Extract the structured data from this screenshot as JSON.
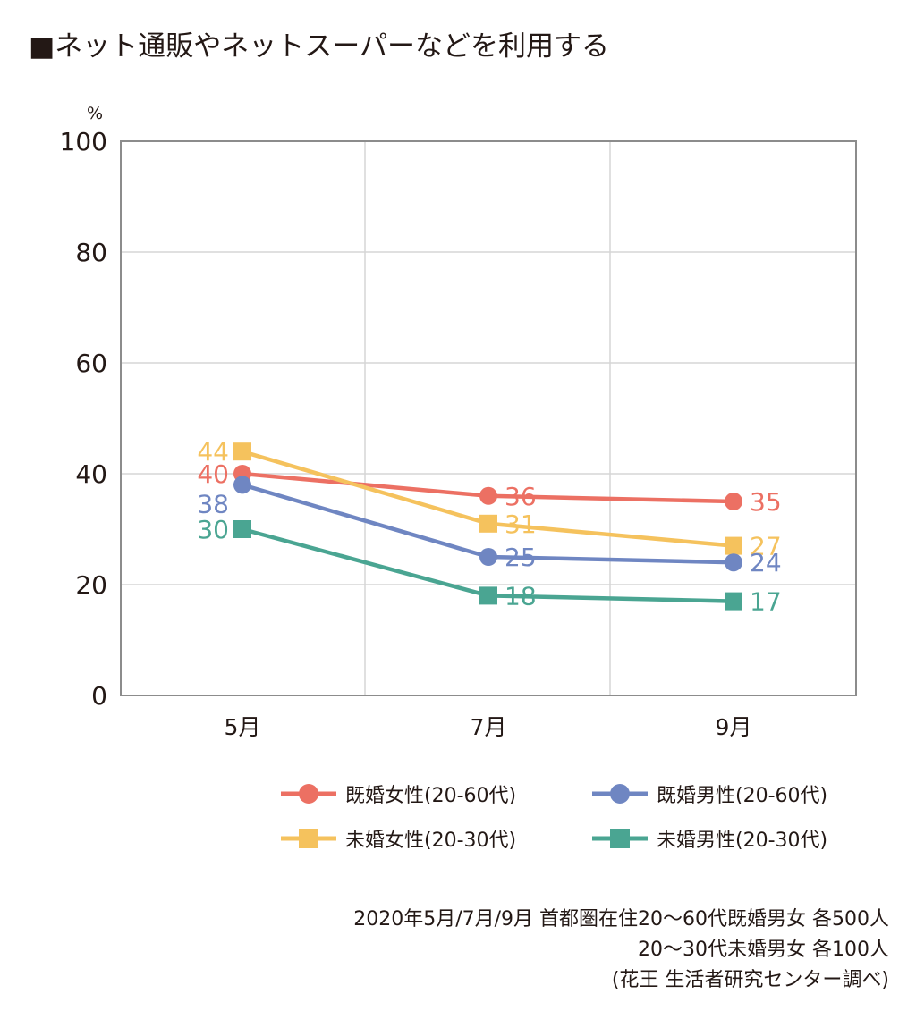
{
  "title": "■ネット通販やネットスーパーなどを利用する",
  "chart_data": {
    "type": "line",
    "title": "■ネット通販やネットスーパーなどを利用する",
    "unit_label": "%",
    "categories": [
      "5月",
      "7月",
      "9月"
    ],
    "ylim": [
      0,
      100
    ],
    "yticks": [
      0,
      20,
      40,
      60,
      80,
      100
    ],
    "grid": true,
    "legend_position": "bottom",
    "series": [
      {
        "name": "既婚女性(20-60代)",
        "values": [
          40,
          36,
          35
        ],
        "color": "#ec7063",
        "marker": "circle"
      },
      {
        "name": "未婚女性(20-30代)",
        "values": [
          44,
          31,
          27
        ],
        "color": "#f5c25d",
        "marker": "square"
      },
      {
        "name": "既婚男性(20-60代)",
        "values": [
          38,
          25,
          24
        ],
        "color": "#6f86c2",
        "marker": "circle"
      },
      {
        "name": "未婚男性(20-30代)",
        "values": [
          30,
          18,
          17
        ],
        "color": "#4aa592",
        "marker": "square"
      }
    ]
  },
  "notes": [
    "2020年5月/7月/9月 首都圏在住20～60代既婚男女 各500人",
    "20～30代未婚男女 各100人",
    "(花王 生活者研究センター調べ)"
  ]
}
